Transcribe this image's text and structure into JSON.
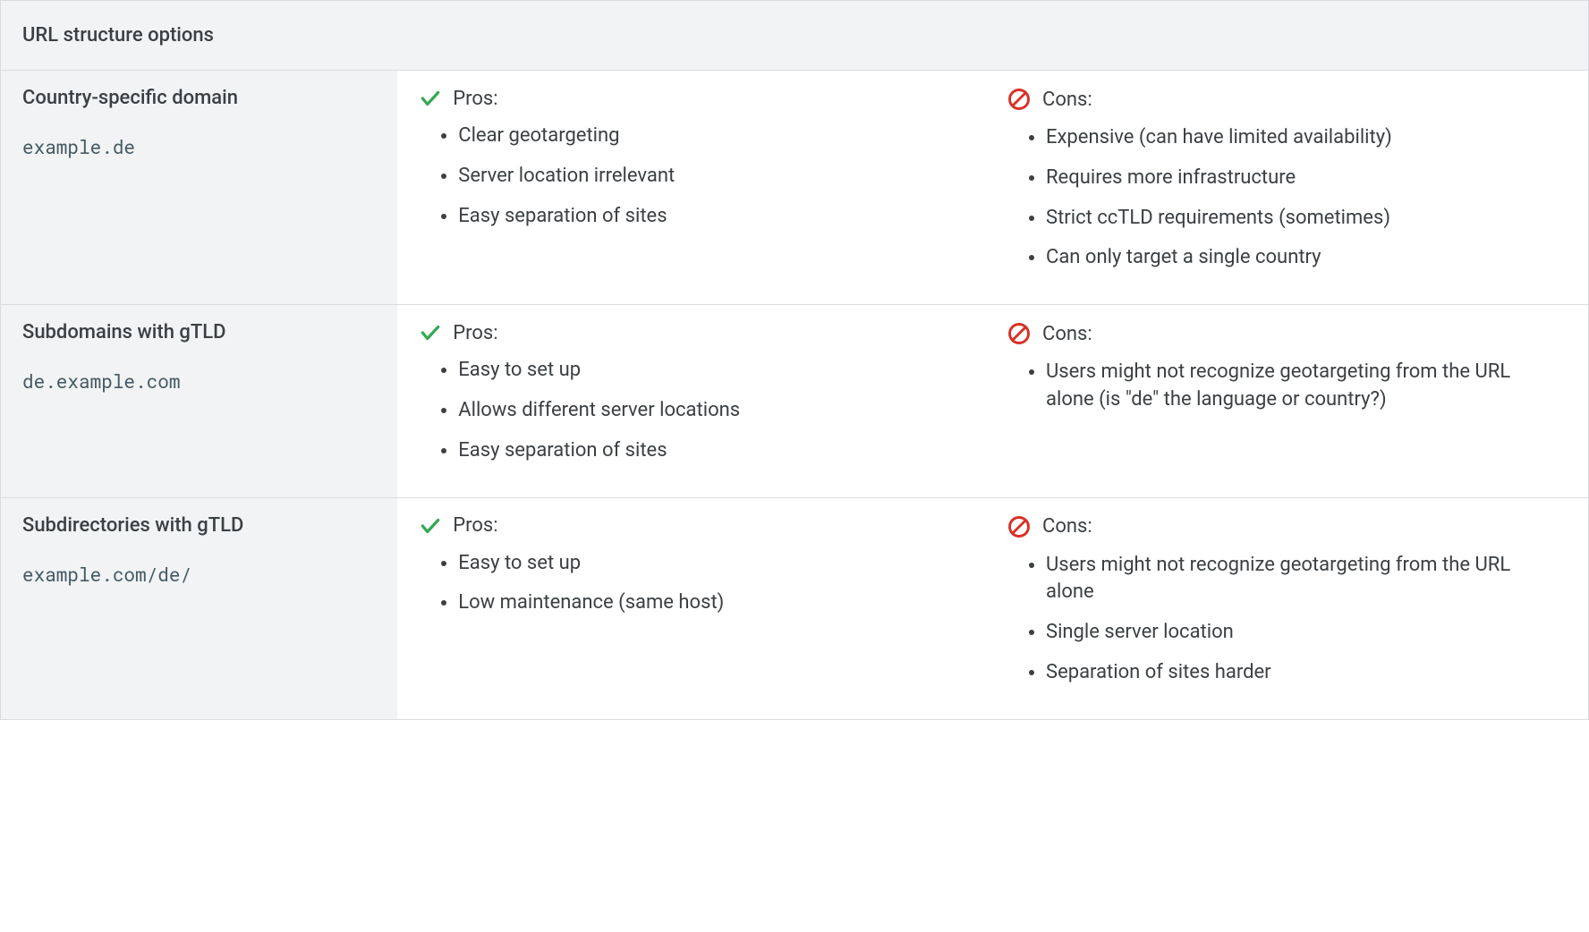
{
  "colors": {
    "text": "#3c4043",
    "header_bg": "#f1f3f4",
    "border": "#dadce0",
    "mono_text": "#455a64",
    "check_green": "#34a853",
    "ban_red": "#d93025"
  },
  "table": {
    "header": "URL structure options",
    "pros_label": "Pros:",
    "cons_label": "Cons:",
    "rows": [
      {
        "title": "Country-specific domain",
        "example": "example.de",
        "pros": [
          "Clear geotargeting",
          "Server location irrelevant",
          "Easy separation of sites"
        ],
        "cons": [
          "Expensive (can have limited availability)",
          "Requires more infrastructure",
          "Strict ccTLD requirements (sometimes)",
          "Can only target a single country"
        ]
      },
      {
        "title": "Subdomains with gTLD",
        "example": "de.example.com",
        "pros": [
          "Easy to set up",
          "Allows different server locations",
          "Easy separation of sites"
        ],
        "cons": [
          "Users might not recognize geotargeting from the URL alone (is \"de\" the language or country?)"
        ]
      },
      {
        "title": "Subdirectories with gTLD",
        "example": "example.com/de/",
        "pros": [
          "Easy to set up",
          "Low maintenance (same host)"
        ],
        "cons": [
          "Users might not recognize geotargeting from the URL alone",
          "Single server location",
          "Separation of sites harder"
        ]
      }
    ]
  }
}
